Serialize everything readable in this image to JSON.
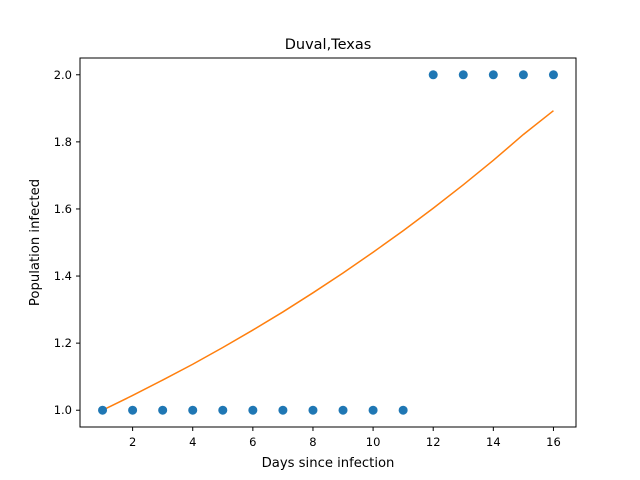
{
  "chart_data": {
    "type": "scatter",
    "title": "Duval,Texas",
    "xlabel": "Days since infection",
    "ylabel": "Population infected",
    "xlim": [
      0.25,
      16.75
    ],
    "ylim": [
      0.95,
      2.05
    ],
    "x_ticks": [
      2,
      4,
      6,
      8,
      10,
      12,
      14,
      16
    ],
    "y_ticks": [
      1.0,
      1.2,
      1.4,
      1.6,
      1.8,
      2.0
    ],
    "x_tick_labels": [
      "2",
      "4",
      "6",
      "8",
      "10",
      "12",
      "14",
      "16"
    ],
    "y_tick_labels": [
      "1.0",
      "1.2",
      "1.4",
      "1.6",
      "1.8",
      "2.0"
    ],
    "grid": false,
    "series": [
      {
        "type": "scatter",
        "color": "#1f77b4",
        "x": [
          1,
          2,
          3,
          4,
          5,
          6,
          7,
          8,
          9,
          10,
          11,
          12,
          13,
          14,
          15,
          16
        ],
        "y": [
          1,
          1,
          1,
          1,
          1,
          1,
          1,
          1,
          1,
          1,
          1,
          2,
          2,
          2,
          2,
          2
        ]
      },
      {
        "type": "line",
        "color": "#ff7f0e",
        "x": [
          1,
          2,
          3,
          4,
          5,
          6,
          7,
          8,
          9,
          10,
          11,
          12,
          13,
          14,
          15,
          16
        ],
        "y": [
          1.0,
          1.044,
          1.09,
          1.137,
          1.187,
          1.239,
          1.293,
          1.35,
          1.409,
          1.471,
          1.535,
          1.602,
          1.672,
          1.745,
          1.822,
          1.893
        ]
      }
    ]
  }
}
